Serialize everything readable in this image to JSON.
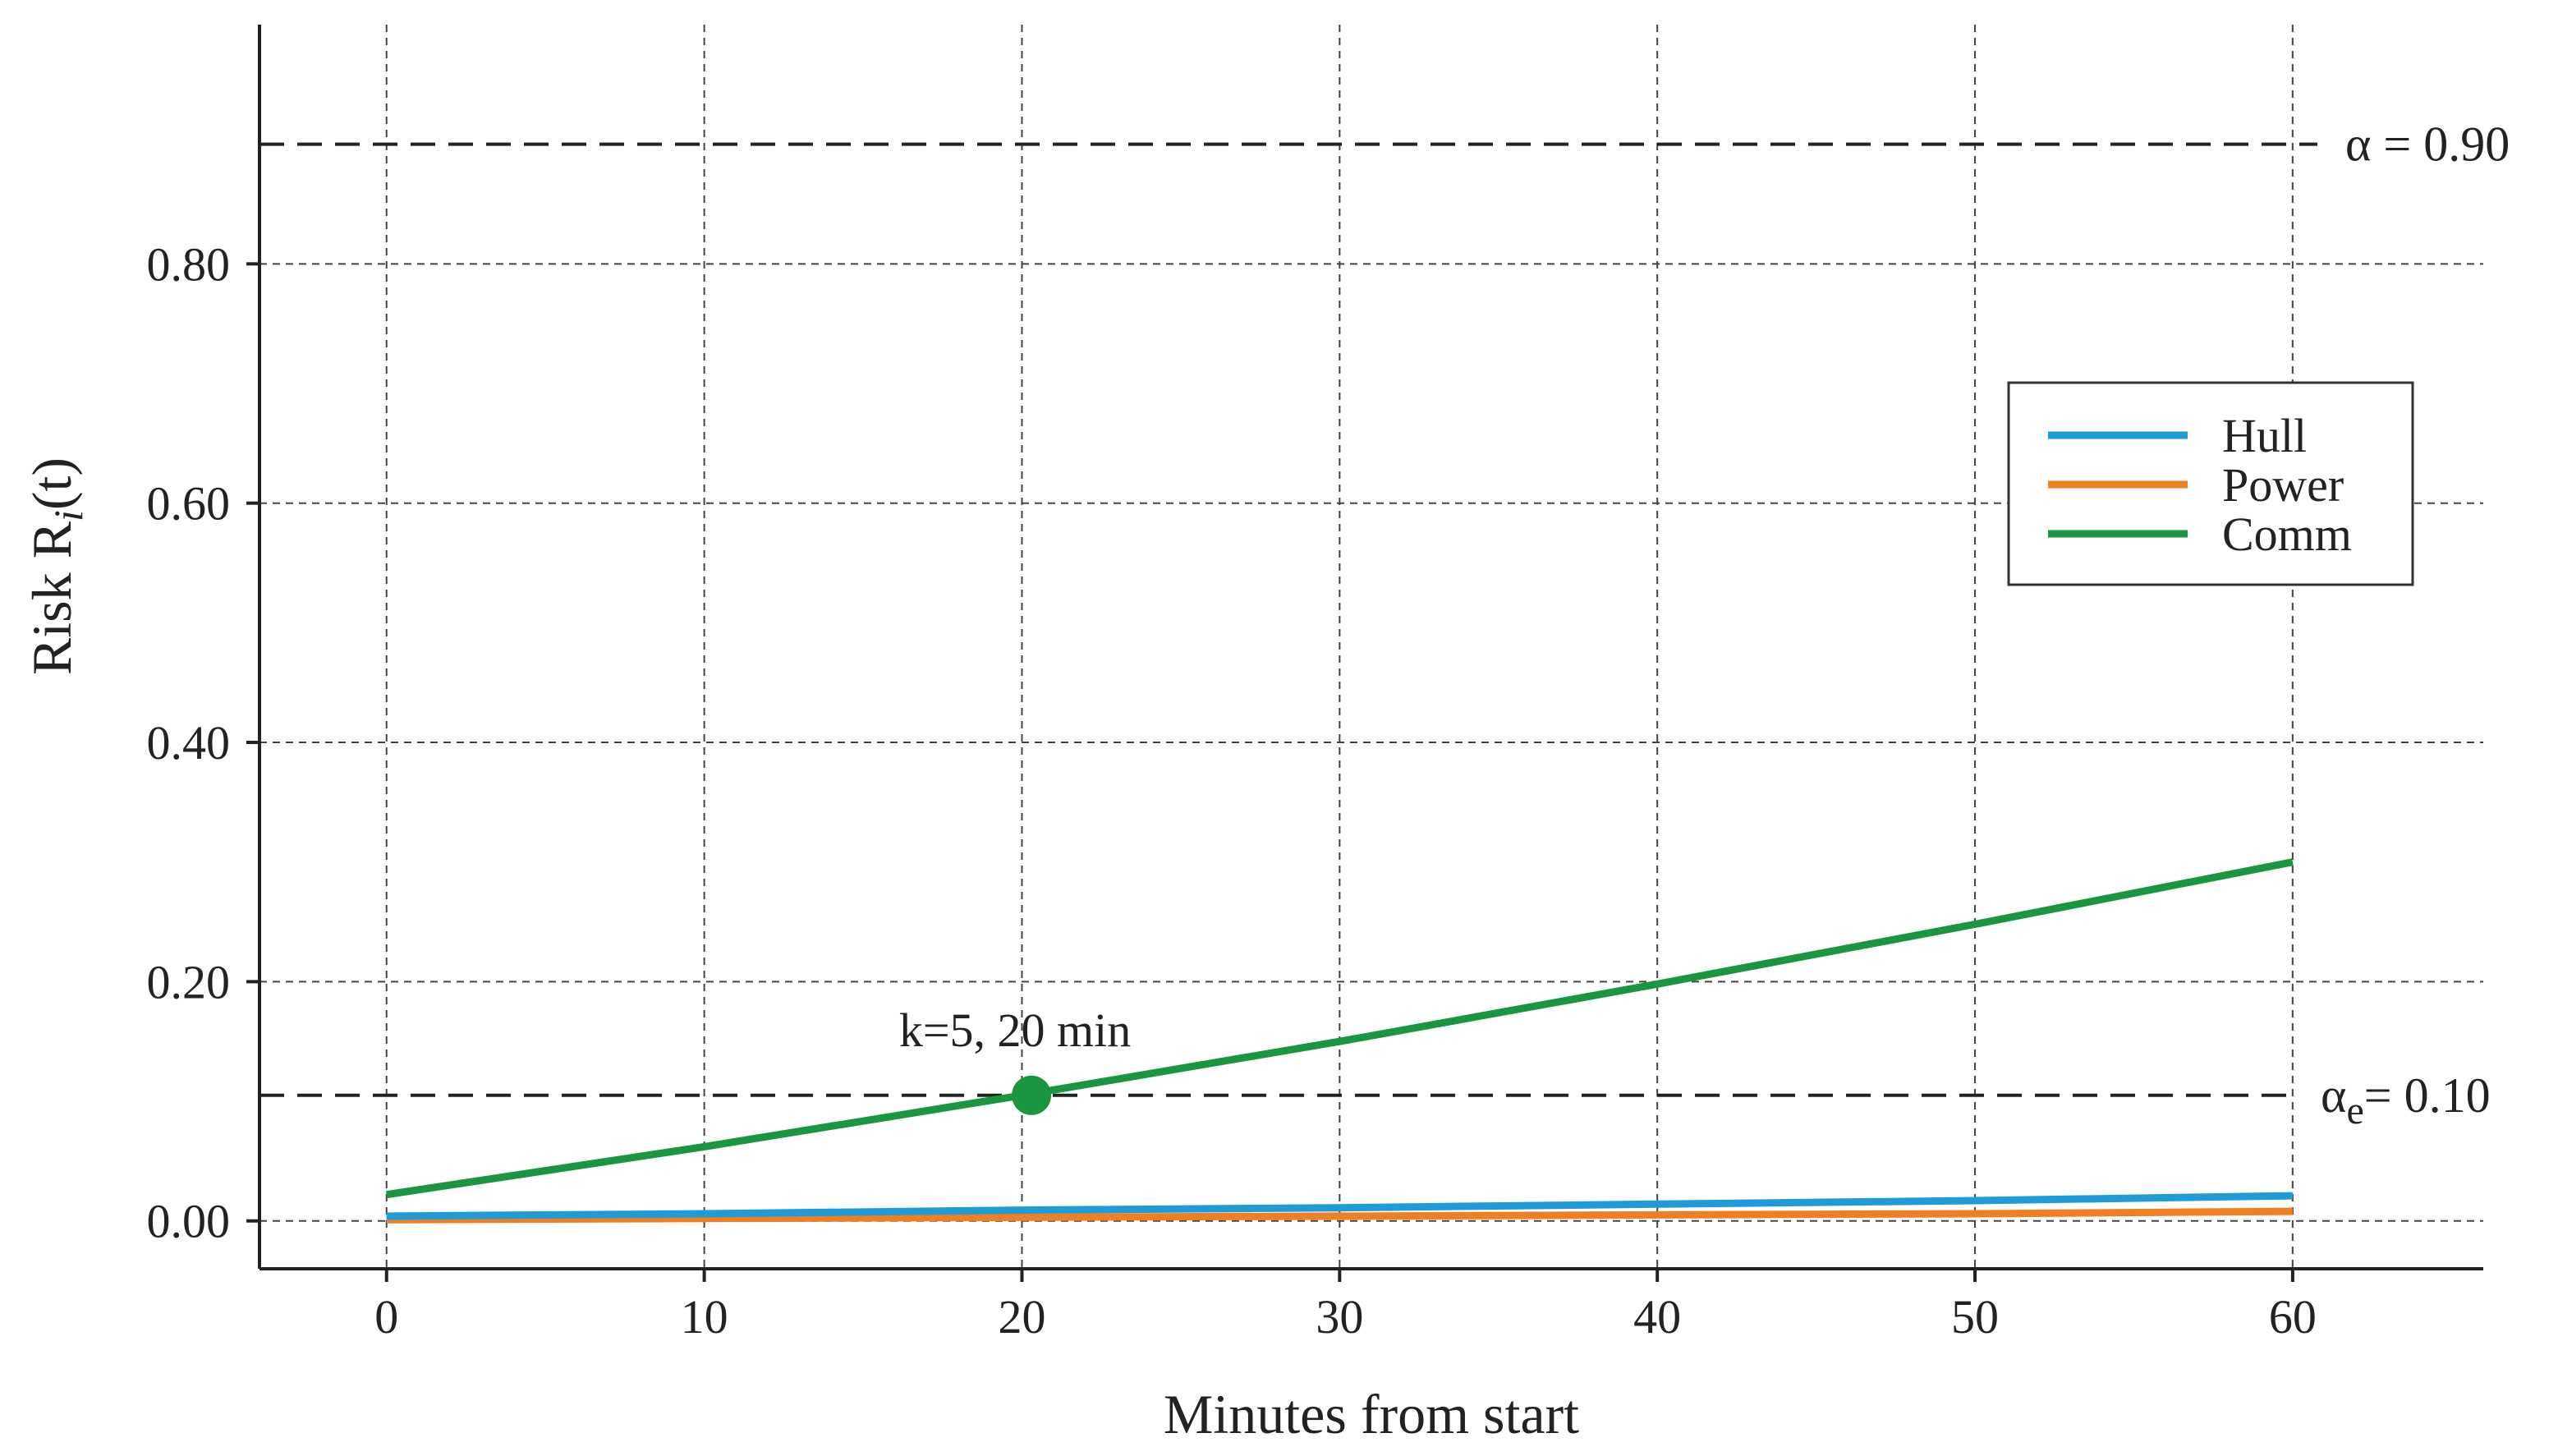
{
  "chart_data": {
    "type": "line",
    "xlabel": "Minutes from start",
    "ylabel": "Risk R",
    "ylabel_sub": "i",
    "ylabel_tail": "(t)",
    "xlim": [
      -4,
      66
    ],
    "ylim": [
      -0.04,
      1.0
    ],
    "xticks": [
      0,
      10,
      20,
      30,
      40,
      50,
      60
    ],
    "xtick_labels": [
      "0",
      "10",
      "20",
      "30",
      "40",
      "50",
      "60"
    ],
    "yticks": [
      0.0,
      0.2,
      0.4,
      0.6,
      0.8
    ],
    "ytick_labels": [
      "0.00",
      "0.20",
      "0.40",
      "0.60",
      "0.80"
    ],
    "grid": true,
    "legend_position": "right",
    "series": [
      {
        "name": "Hull",
        "color": "#1f9bd7",
        "x": [
          0,
          10,
          20,
          30,
          40,
          50,
          60
        ],
        "y": [
          0.004,
          0.006,
          0.009,
          0.011,
          0.014,
          0.017,
          0.021
        ]
      },
      {
        "name": "Power",
        "color": "#f07f22",
        "x": [
          0,
          10,
          20,
          30,
          40,
          50,
          60
        ],
        "y": [
          0.001,
          0.002,
          0.003,
          0.004,
          0.005,
          0.006,
          0.008
        ]
      },
      {
        "name": "Comm",
        "color": "#1a9641",
        "x": [
          0,
          10,
          20,
          30,
          40,
          50,
          60
        ],
        "y": [
          0.022,
          0.062,
          0.105,
          0.15,
          0.198,
          0.248,
          0.3
        ]
      }
    ],
    "thresholds": [
      {
        "y": 0.9,
        "label_main": "α = 0.90",
        "label_pre": "",
        "label_sub": "",
        "label_post": ""
      },
      {
        "y": 0.105,
        "label_main": "",
        "label_pre": "α",
        "label_sub": "e",
        "label_post": "= 0.10"
      }
    ],
    "marker": {
      "x": 20.3,
      "y": 0.105,
      "color": "#1a9641",
      "label": "k=5, 20 min"
    }
  }
}
